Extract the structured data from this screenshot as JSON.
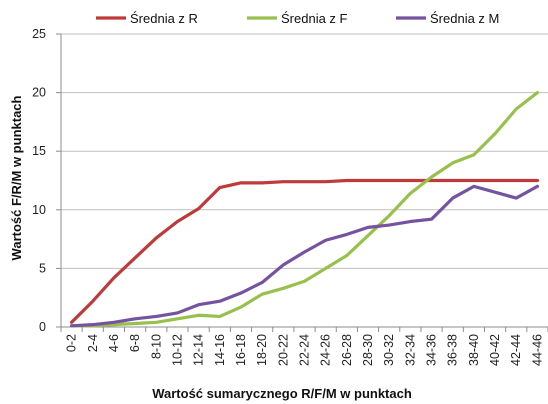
{
  "chart_data": {
    "type": "line",
    "title": "",
    "xlabel": "Wartość sumarycznego R/F/M w punktach",
    "ylabel": "Wartość F/R/M w punktach",
    "ylim": [
      0,
      25
    ],
    "yticks": [
      0,
      5,
      10,
      15,
      20,
      25
    ],
    "grid": true,
    "legend_position": "top",
    "categories": [
      "0-2",
      "2-4",
      "4-6",
      "6-8",
      "8-10",
      "10-12",
      "12-14",
      "14-16",
      "16-18",
      "18-20",
      "20-22",
      "22-24",
      "24-26",
      "26-28",
      "28-30",
      "30-32",
      "32-34",
      "34-36",
      "36-38",
      "38-40",
      "40-42",
      "42-44",
      "44-46"
    ],
    "series": [
      {
        "name": "Średnia z R",
        "color": "#c0393b",
        "values": [
          0.4,
          2.2,
          4.2,
          5.9,
          7.6,
          9.0,
          10.1,
          11.9,
          12.3,
          12.3,
          12.4,
          12.4,
          12.4,
          12.5,
          12.5,
          12.5,
          12.5,
          12.5,
          12.5,
          12.5,
          12.5,
          12.5,
          12.5
        ]
      },
      {
        "name": "Średnia z F",
        "color": "#97c14c",
        "values": [
          0.1,
          0.1,
          0.2,
          0.3,
          0.4,
          0.7,
          1.0,
          0.9,
          1.7,
          2.8,
          3.3,
          3.9,
          5.0,
          6.1,
          7.8,
          9.5,
          11.4,
          12.8,
          14.0,
          14.7,
          16.5,
          18.6,
          20.0
        ]
      },
      {
        "name": "Średnia z M",
        "color": "#7553a0",
        "values": [
          0.1,
          0.2,
          0.4,
          0.7,
          0.9,
          1.2,
          1.9,
          2.2,
          2.9,
          3.8,
          5.3,
          6.4,
          7.4,
          7.9,
          8.5,
          8.7,
          9.0,
          9.2,
          11.0,
          12.0,
          11.5,
          11.0,
          12.0
        ]
      }
    ]
  }
}
